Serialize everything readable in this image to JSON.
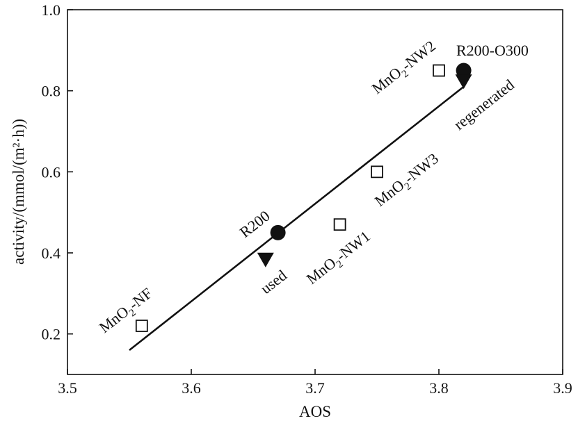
{
  "chart_data": {
    "type": "scatter",
    "xlabel": "AOS",
    "ylabel": "activity/(mmol/(m²·h))",
    "xlim": [
      3.5,
      3.9
    ],
    "ylim": [
      0.1,
      1.0
    ],
    "xticks": [
      "3.5",
      "3.6",
      "3.7",
      "3.8",
      "3.9"
    ],
    "yticks": [
      "0.2",
      "0.4",
      "0.6",
      "0.8",
      "1.0"
    ],
    "grid": false,
    "legend": "none",
    "series": [
      {
        "marker": "open-square",
        "points": [
          {
            "x": 3.56,
            "y": 0.22,
            "label": "MnO2-NF"
          },
          {
            "x": 3.72,
            "y": 0.47,
            "label": "MnO2-NW1"
          },
          {
            "x": 3.75,
            "y": 0.6,
            "label": "MnO2-NW3"
          },
          {
            "x": 3.8,
            "y": 0.85,
            "label": "MnO2-NW2"
          }
        ]
      },
      {
        "marker": "filled-circle",
        "points": [
          {
            "x": 3.67,
            "y": 0.45,
            "label": "R200"
          },
          {
            "x": 3.82,
            "y": 0.85,
            "label": "R200-O300"
          }
        ]
      },
      {
        "marker": "filled-down-triangle",
        "points": [
          {
            "x": 3.66,
            "y": 0.385,
            "label": "used"
          },
          {
            "x": 3.82,
            "y": 0.825,
            "label": "regenerated"
          }
        ]
      }
    ],
    "fit_line": {
      "x": [
        3.55,
        3.82
      ],
      "y": [
        0.16,
        0.81
      ]
    }
  }
}
